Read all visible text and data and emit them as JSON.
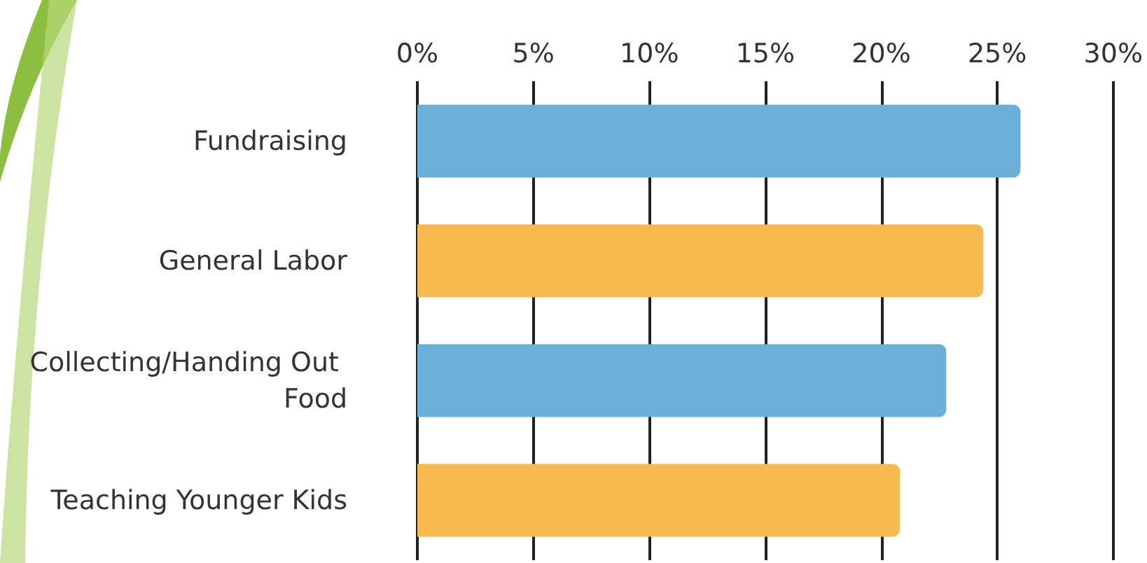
{
  "chart_data": {
    "type": "bar",
    "orientation": "horizontal",
    "categories": [
      "Fundraising",
      "General Labor",
      "Collecting/Handing Out Food",
      "Teaching Younger Kids"
    ],
    "values": [
      26.0,
      24.4,
      22.8,
      20.8
    ],
    "colors": [
      "#6aafd6",
      "#f6b94f",
      "#6aafd6",
      "#f6b94f"
    ],
    "xlim": [
      0,
      30
    ],
    "xticks": [
      {
        "value": 0,
        "label": "0%"
      },
      {
        "value": 5,
        "label": "5%"
      },
      {
        "value": 10,
        "label": "10%"
      },
      {
        "value": 15,
        "label": "15%"
      },
      {
        "value": 20,
        "label": "20%"
      },
      {
        "value": 25,
        "label": "25%"
      },
      {
        "value": 30,
        "label": "30%"
      }
    ],
    "grid": "x"
  }
}
